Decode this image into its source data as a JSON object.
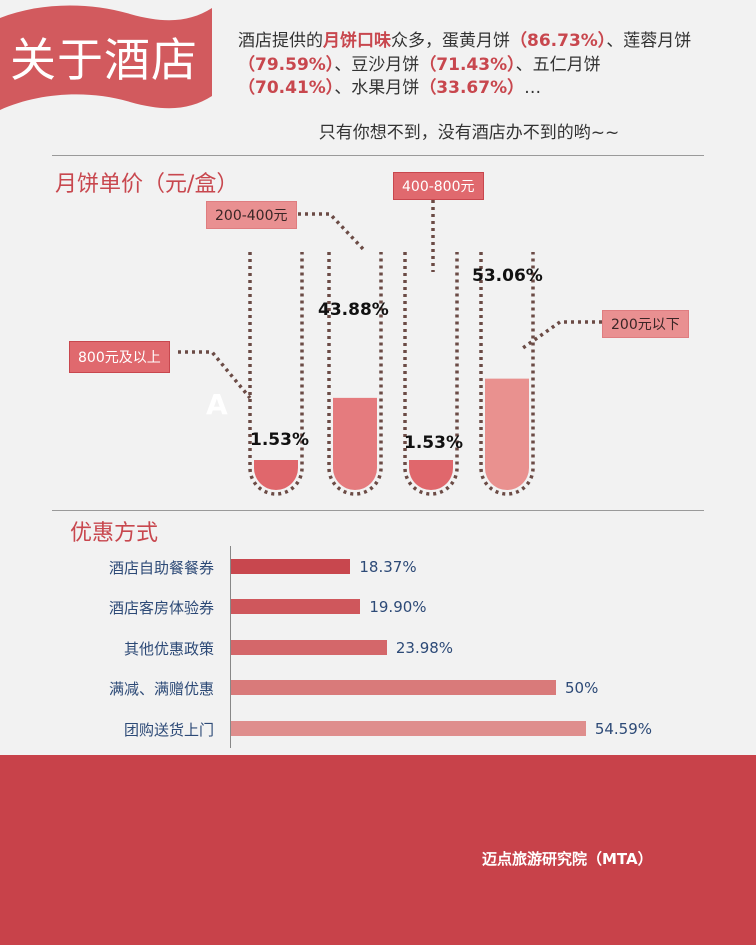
{
  "banner": {
    "title": "关于酒店",
    "color": "#d25a5e"
  },
  "intro": {
    "p1": "酒店提供的",
    "highlight": "月饼口味",
    "p2": "众多，蛋黄月饼",
    "v1": "（86.73%）",
    "p3": "、莲蓉月饼",
    "v2": "（79.59%）",
    "p4": "、豆沙月饼",
    "v3": "（71.43%）",
    "p5": "、五仁月饼",
    "v4": "（70.41%）",
    "p6": "、水果月饼",
    "v5": "（33.67%）",
    "p7": "…",
    "subline": "只有你想不到，没有酒店办不到的哟~~"
  },
  "tubes_section": {
    "title": "月饼单价（元/盒）",
    "decor_letter": "A",
    "colors": {
      "dark": "#e0676c",
      "medium": "#e57b7e",
      "light": "#e9918f",
      "dots": "#6b4b45"
    }
  },
  "bars_section": {
    "title": "优惠方式",
    "colors": [
      "#c8474e",
      "#cf575c",
      "#d4676a",
      "#d97a7a",
      "#df8e8d"
    ]
  },
  "chart_data": [
    {
      "type": "bar",
      "title": "月饼单价（元/盒）",
      "categories": [
        "800元及以上",
        "200-400元",
        "400-800元",
        "200元以下"
      ],
      "values": [
        1.53,
        43.88,
        1.53,
        53.06
      ],
      "value_labels": [
        "1.53%",
        "43.88%",
        "1.53%",
        "53.06%"
      ],
      "ylim": [
        0,
        100
      ]
    },
    {
      "type": "bar",
      "orientation": "horizontal",
      "title": "优惠方式",
      "categories": [
        "酒店自助餐餐券",
        "酒店客房体验券",
        "其他优惠政策",
        "满减、满赠优惠",
        "团购送货上门"
      ],
      "values": [
        18.37,
        19.9,
        23.98,
        50,
        54.59
      ],
      "value_labels": [
        "18.37%",
        "19.90%",
        "23.98%",
        "50%",
        "54.59%"
      ]
    }
  ],
  "footer": {
    "text": "迈点旅游研究院（MTA）",
    "color": "#c8424a"
  }
}
